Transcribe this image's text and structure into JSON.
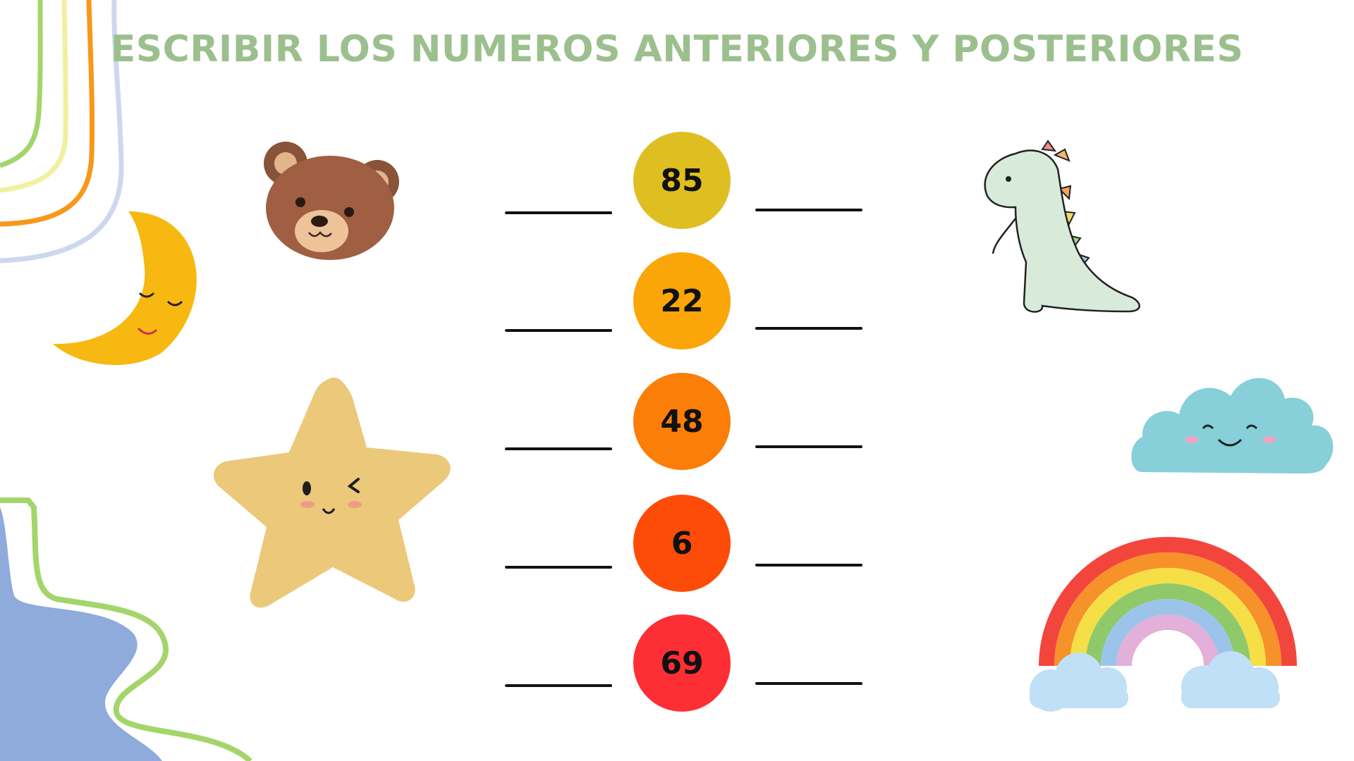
{
  "title": "ESCRIBIR LOS NUMEROS ANTERIORES Y POSTERIORES",
  "colors": {
    "title": "#9cbf8e",
    "circles": [
      "#dfbe22",
      "#fba608",
      "#fb7e08",
      "#fd4c08",
      "#fd2f34"
    ]
  },
  "numbers": [
    "85",
    "22",
    "48",
    "6",
    "69"
  ],
  "decorations": [
    "bear-sticker",
    "moon-sticker",
    "star-sticker",
    "dinosaur-sticker",
    "cloud-sticker",
    "rainbow-sticker"
  ]
}
